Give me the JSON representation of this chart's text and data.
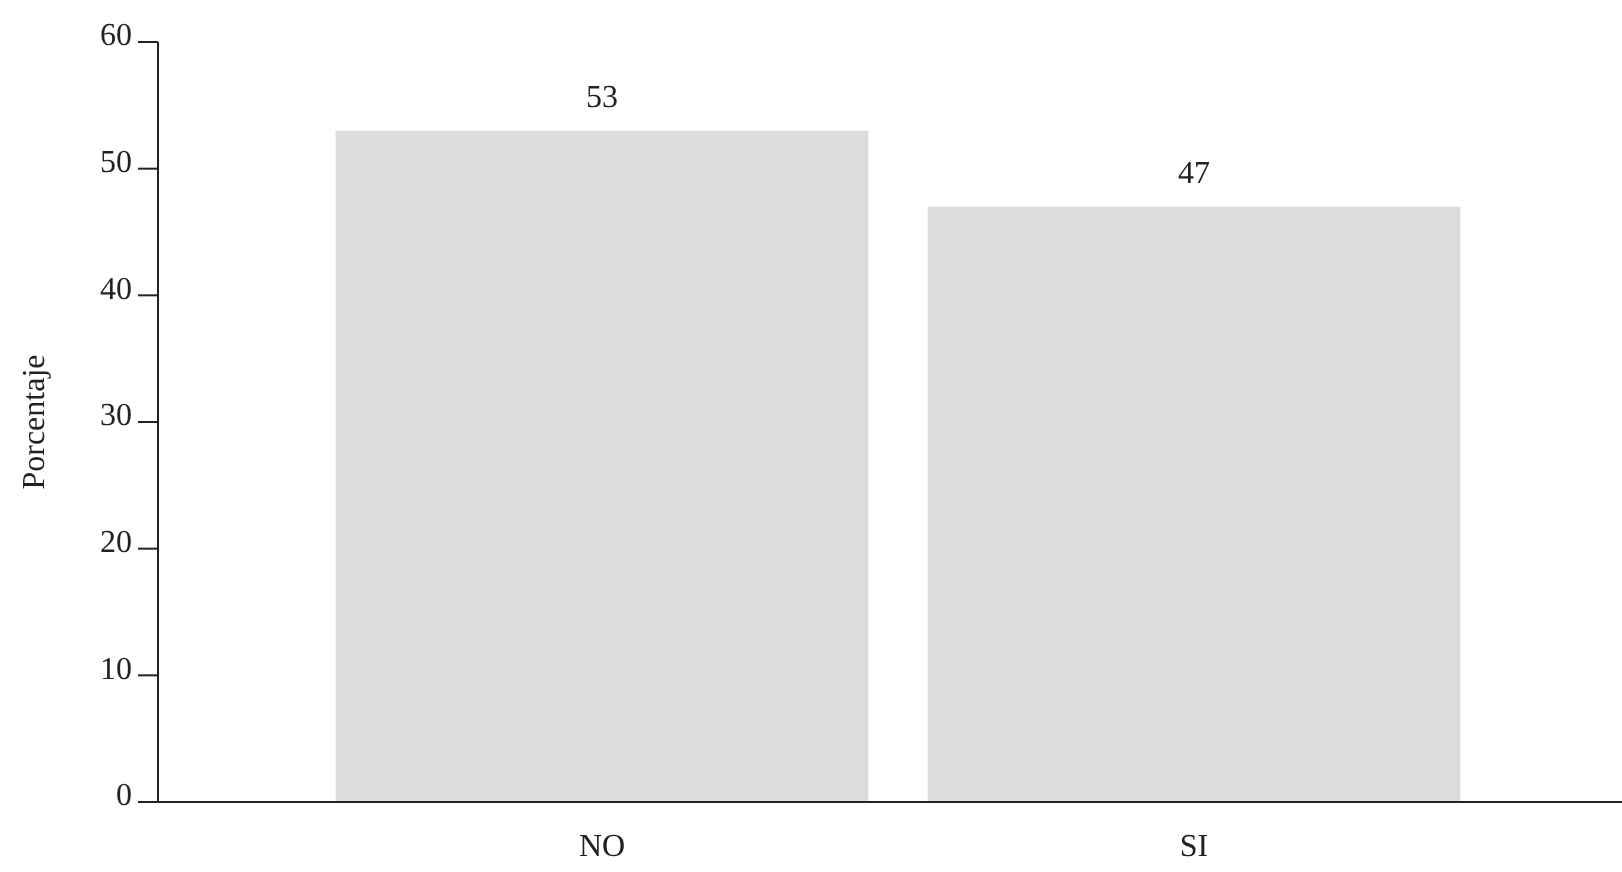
{
  "chart_data": {
    "type": "bar",
    "ylabel": "Porcentaje",
    "categories": [
      "NO",
      "SI"
    ],
    "values": [
      53,
      47
    ],
    "color": "#dddddd",
    "ylim": [
      0,
      60
    ],
    "yticks": [
      0,
      10,
      20,
      30,
      40,
      50,
      60
    ],
    "data_labels": true,
    "grid": false
  }
}
